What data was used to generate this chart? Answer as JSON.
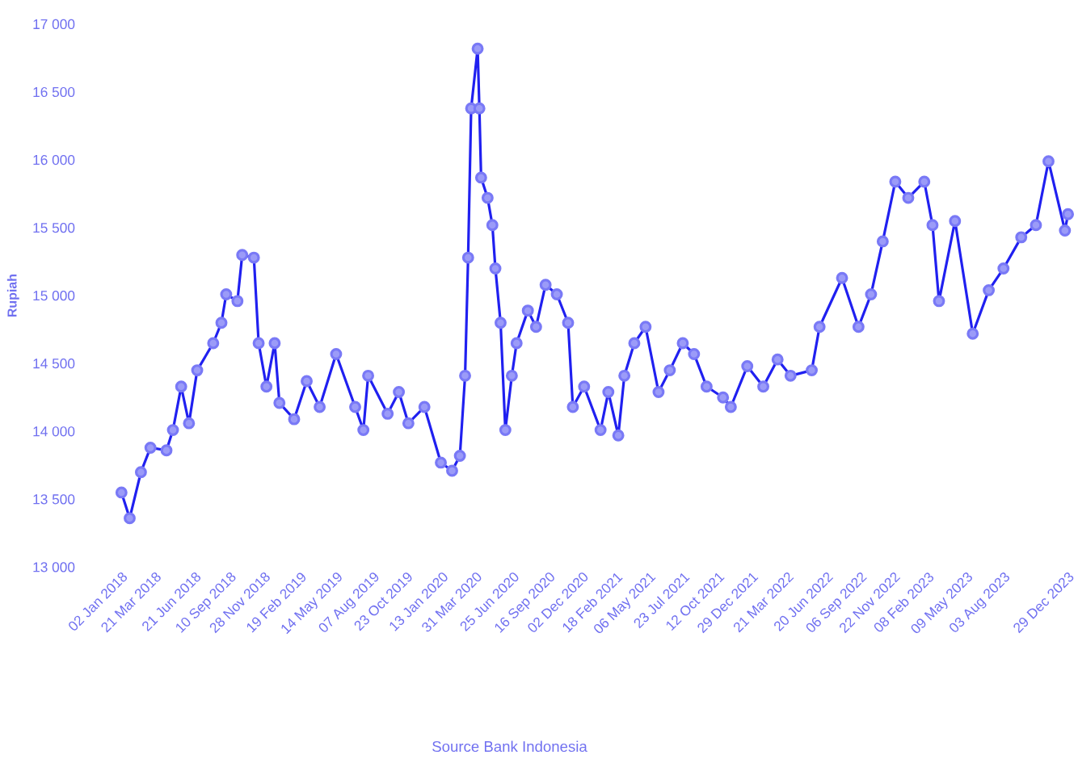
{
  "chart_data": {
    "type": "line",
    "ylabel": "Rupiah",
    "annotations": [
      "Source Bank Indonesia"
    ],
    "color": "#2020f0",
    "marker": "circle",
    "x": [
      "2018-01-02",
      "2018-01-21",
      "2018-02-16",
      "2018-03-10",
      "2018-04-16",
      "2018-05-01",
      "2018-05-20",
      "2018-06-07",
      "2018-06-26",
      "2018-08-02",
      "2018-08-21",
      "2018-09-01",
      "2018-09-27",
      "2018-10-08",
      "2018-11-04",
      "2018-11-15",
      "2018-12-03",
      "2018-12-22",
      "2019-01-02",
      "2019-02-05",
      "2019-03-06",
      "2019-04-05",
      "2019-05-13",
      "2019-06-26",
      "2019-07-15",
      "2019-07-26",
      "2019-09-09",
      "2019-10-05",
      "2019-10-27",
      "2019-12-03",
      "2020-01-10",
      "2020-02-05",
      "2020-02-23",
      "2020-03-06",
      "2020-03-13",
      "2020-03-20",
      "2020-04-04",
      "2020-04-08",
      "2020-04-12",
      "2020-04-27",
      "2020-05-08",
      "2020-05-15",
      "2020-05-27",
      "2020-06-07",
      "2020-06-22",
      "2020-07-03",
      "2020-07-29",
      "2020-08-17",
      "2020-09-08",
      "2020-10-04",
      "2020-10-30",
      "2020-11-10",
      "2020-12-06",
      "2021-01-13",
      "2021-01-31",
      "2021-02-23",
      "2021-03-09",
      "2021-04-01",
      "2021-04-27",
      "2021-05-27",
      "2021-06-22",
      "2021-07-22",
      "2021-08-17",
      "2021-09-15",
      "2021-10-23",
      "2021-11-10",
      "2021-12-18",
      "2022-01-24",
      "2022-02-26",
      "2022-03-28",
      "2022-05-16",
      "2022-06-03",
      "2022-07-25",
      "2022-09-01",
      "2022-09-30",
      "2022-10-27",
      "2022-11-25",
      "2022-12-25",
      "2023-01-31",
      "2023-02-19",
      "2023-03-06",
      "2023-04-12",
      "2023-05-23",
      "2023-06-29",
      "2023-08-02",
      "2023-09-12",
      "2023-10-16",
      "2023-11-14",
      "2023-12-22",
      "2023-12-29"
    ],
    "values": [
      13550,
      13360,
      13700,
      13880,
      13860,
      14010,
      14330,
      14060,
      14450,
      14650,
      14800,
      15010,
      14960,
      15300,
      15280,
      14650,
      14330,
      14650,
      14210,
      14090,
      14370,
      14180,
      14570,
      14180,
      14010,
      14410,
      14130,
      14290,
      14060,
      14180,
      13770,
      13710,
      13820,
      14410,
      15280,
      16380,
      16820,
      16380,
      15870,
      15720,
      15520,
      15200,
      14800,
      14010,
      14410,
      14650,
      14890,
      14770,
      15080,
      15010,
      14800,
      14180,
      14330,
      14010,
      14290,
      13970,
      14410,
      14650,
      14770,
      14290,
      14450,
      14650,
      14570,
      14330,
      14250,
      14180,
      14480,
      14330,
      14530,
      14410,
      14450,
      14770,
      15130,
      14770,
      15010,
      15400,
      15840,
      15720,
      15840,
      15520,
      14960,
      15550,
      14720,
      15040,
      15200,
      15430,
      15520,
      15990,
      15480,
      15600
    ],
    "xlim": [
      "2018-01-02",
      "2023-12-29"
    ],
    "xticks": [
      {
        "value": "2018-01-02",
        "label": "02 Jan 2018"
      },
      {
        "value": "2018-03-21",
        "label": "21 Mar 2018"
      },
      {
        "value": "2018-06-21",
        "label": "21 Jun 2018"
      },
      {
        "value": "2018-09-10",
        "label": "10 Sep 2018"
      },
      {
        "value": "2018-11-28",
        "label": "28 Nov 2018"
      },
      {
        "value": "2019-02-19",
        "label": "19 Feb 2019"
      },
      {
        "value": "2019-05-14",
        "label": "14 May 2019"
      },
      {
        "value": "2019-08-07",
        "label": "07 Aug 2019"
      },
      {
        "value": "2019-10-23",
        "label": "23 Oct 2019"
      },
      {
        "value": "2020-01-13",
        "label": "13 Jan 2020"
      },
      {
        "value": "2020-03-31",
        "label": "31 Mar 2020"
      },
      {
        "value": "2020-06-25",
        "label": "25 Jun 2020"
      },
      {
        "value": "2020-09-16",
        "label": "16 Sep 2020"
      },
      {
        "value": "2020-12-02",
        "label": "02 Dec 2020"
      },
      {
        "value": "2021-02-18",
        "label": "18 Feb 2021"
      },
      {
        "value": "2021-05-06",
        "label": "06 May 2021"
      },
      {
        "value": "2021-07-23",
        "label": "23 Jul 2021"
      },
      {
        "value": "2021-10-12",
        "label": "12 Oct 2021"
      },
      {
        "value": "2021-12-29",
        "label": "29 Dec 2021"
      },
      {
        "value": "2022-03-21",
        "label": "21 Mar 2022"
      },
      {
        "value": "2022-06-20",
        "label": "20 Jun 2022"
      },
      {
        "value": "2022-09-06",
        "label": "06 Sep 2022"
      },
      {
        "value": "2022-11-22",
        "label": "22 Nov 2022"
      },
      {
        "value": "2023-02-08",
        "label": "08 Feb 2023"
      },
      {
        "value": "2023-05-09",
        "label": "09 May 2023"
      },
      {
        "value": "2023-08-03",
        "label": "03 Aug 2023"
      },
      {
        "value": "2023-12-29",
        "label": "29 Dec 2023"
      }
    ],
    "ylim": [
      13000,
      17000
    ],
    "yticks": [
      {
        "value": 13000,
        "label": "13 000"
      },
      {
        "value": 13500,
        "label": "13 500"
      },
      {
        "value": 14000,
        "label": "14 000"
      },
      {
        "value": 14500,
        "label": "14 500"
      },
      {
        "value": 15000,
        "label": "15 000"
      },
      {
        "value": 15500,
        "label": "15 500"
      },
      {
        "value": 16000,
        "label": "16 000"
      },
      {
        "value": 16500,
        "label": "16 500"
      },
      {
        "value": 17000,
        "label": "17 000"
      }
    ]
  }
}
